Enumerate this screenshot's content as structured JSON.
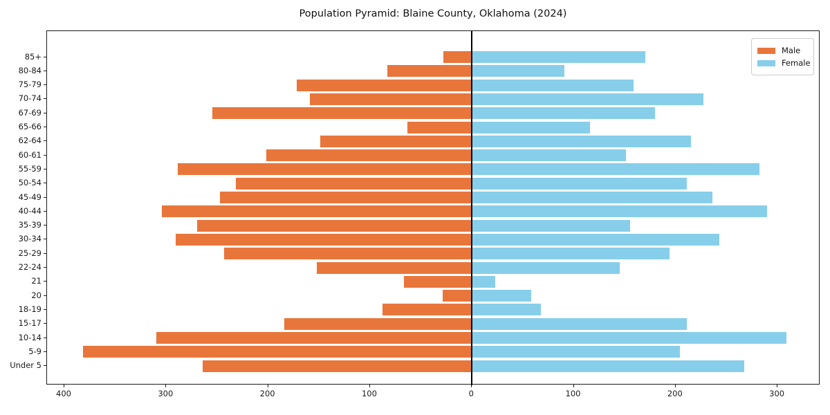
{
  "chart_data": {
    "type": "bar",
    "subtype": "population-pyramid",
    "orientation": "horizontal",
    "title": "Population Pyramid: Blaine County, Oklahoma (2024)",
    "categories_top_to_bottom": [
      "85+",
      "80-84",
      "75-79",
      "70-74",
      "67-69",
      "65-66",
      "62-64",
      "60-61",
      "55-59",
      "50-54",
      "45-49",
      "40-44",
      "35-39",
      "30-34",
      "25-29",
      "22-24",
      "21",
      "20",
      "18-19",
      "15-17",
      "10-14",
      "5-9",
      "Under 5"
    ],
    "series": [
      {
        "name": "Male",
        "side": "left",
        "color": "#E8763B",
        "values": [
          28,
          83,
          172,
          159,
          255,
          63,
          149,
          202,
          289,
          232,
          247,
          304,
          270,
          291,
          243,
          152,
          67,
          29,
          88,
          184,
          310,
          382,
          264
        ]
      },
      {
        "name": "Female",
        "side": "right",
        "color": "#87CEEB",
        "values": [
          170,
          91,
          159,
          227,
          180,
          116,
          215,
          151,
          282,
          211,
          236,
          290,
          155,
          243,
          194,
          145,
          23,
          58,
          68,
          211,
          309,
          204,
          267
        ]
      }
    ],
    "x_axis": {
      "tick_values": [
        -400,
        -300,
        -200,
        -100,
        0,
        100,
        200,
        300
      ],
      "tick_labels": [
        "400",
        "300",
        "200",
        "100",
        "0",
        "100",
        "200",
        "300"
      ],
      "xlim": [
        -417,
        342
      ]
    },
    "y_axis": {
      "tick_labels": [
        "85+",
        "80-84",
        "75-79",
        "70-74",
        "67-69",
        "65-66",
        "62-64",
        "60-61",
        "55-59",
        "50-54",
        "45-49",
        "40-44",
        "35-39",
        "30-34",
        "25-29",
        "22-24",
        "21",
        "20",
        "18-19",
        "15-17",
        "10-14",
        "5-9",
        "Under 5"
      ]
    },
    "legend": {
      "position": "upper-right",
      "entries": [
        "Male",
        "Female"
      ]
    },
    "grid": false,
    "colors": {
      "male": "#E8763B",
      "female": "#87CEEB",
      "axis": "#1a1a1a",
      "background": "#ffffff"
    }
  }
}
